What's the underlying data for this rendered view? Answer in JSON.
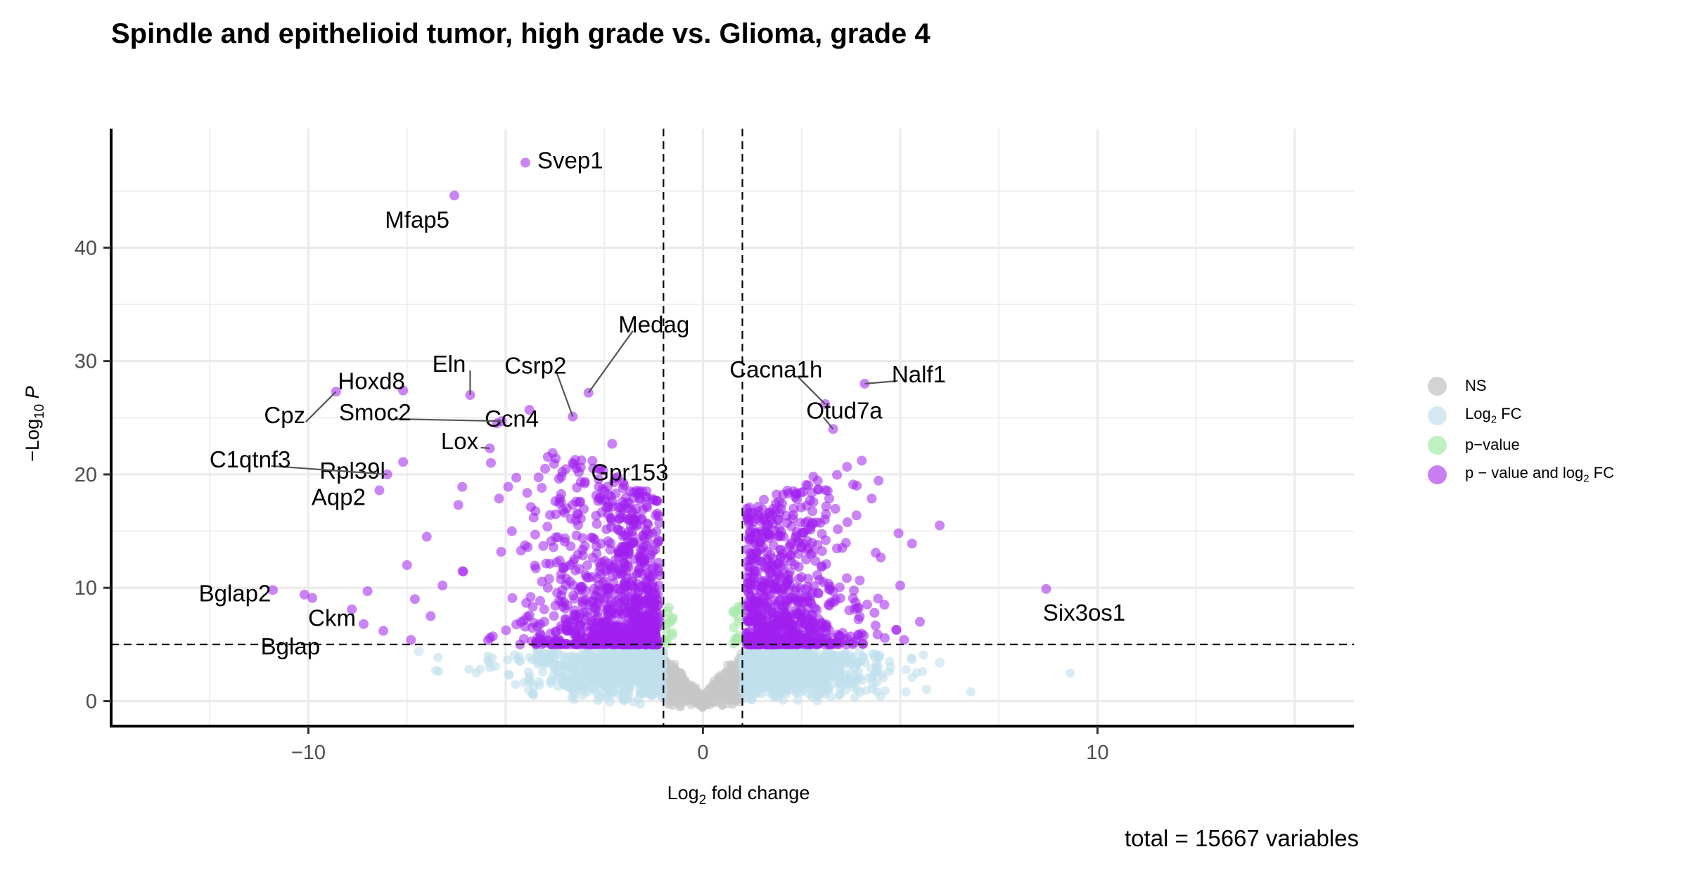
{
  "chart_data": {
    "type": "scatter",
    "title": "Spindle and epithelioid tumor, high grade vs. Glioma, grade 4",
    "xlabel": "Log2 fold change",
    "ylabel": "-Log10 P",
    "caption": "total = 15667 variables",
    "xlim": [
      -15.0,
      16.5
    ],
    "ylim": [
      -2.2,
      50.5
    ],
    "xticks": [
      -10,
      0,
      10
    ],
    "yticks": [
      0,
      10,
      20,
      30,
      40
    ],
    "grid": true,
    "legend_position": "right",
    "fc_cutoff": 1,
    "p_cutoff": 5,
    "total_variables": 15667,
    "legend": [
      {
        "key": "ns",
        "label": "NS",
        "color": "#c6c6c6"
      },
      {
        "key": "fc",
        "label": "Log2 FC",
        "color": "#bfe0ec"
      },
      {
        "key": "p",
        "label": "p-value",
        "color": "#a8e8a8"
      },
      {
        "key": "both",
        "label": "p-value and log2 FC",
        "color": "#a01fef"
      }
    ],
    "labeled_genes": [
      {
        "gene": "Svep1",
        "x": -4.5,
        "y": 47.5
      },
      {
        "gene": "Mfap5",
        "x": -6.3,
        "y": 44.6
      },
      {
        "gene": "Medag",
        "x": -2.9,
        "y": 27.2
      },
      {
        "gene": "Csrp2",
        "x": -3.3,
        "y": 25.1
      },
      {
        "gene": "Gpr153",
        "x": -2.3,
        "y": 22.7
      },
      {
        "gene": "Eln",
        "x": -5.9,
        "y": 27.0
      },
      {
        "gene": "Ccn4",
        "x": -4.4,
        "y": 25.7
      },
      {
        "gene": "Hoxd8",
        "x": -7.6,
        "y": 27.4
      },
      {
        "gene": "Cpz",
        "x": -9.3,
        "y": 27.3
      },
      {
        "gene": "Smoc2",
        "x": -5.1,
        "y": 24.7
      },
      {
        "gene": "Lox",
        "x": -5.4,
        "y": 22.3
      },
      {
        "gene": "Rpl39l",
        "x": -7.6,
        "y": 21.1
      },
      {
        "gene": "C1qtnf3",
        "x": -8.0,
        "y": 20.0
      },
      {
        "gene": "Aqp2",
        "x": -8.2,
        "y": 18.6
      },
      {
        "gene": "Bglap2",
        "x": -10.9,
        "y": 9.8
      },
      {
        "gene": "Ckm",
        "x": -9.9,
        "y": 9.1
      },
      {
        "gene": "Bglap",
        "x": -10.1,
        "y": 9.4
      },
      {
        "gene": "Cacna1h",
        "x": 3.1,
        "y": 26.2
      },
      {
        "gene": "Nalf1",
        "x": 4.1,
        "y": 28.0
      },
      {
        "gene": "Otud7a",
        "x": 3.3,
        "y": 24.0
      },
      {
        "gene": "Six3os1",
        "x": 8.7,
        "y": 9.9
      }
    ],
    "other_points": [
      {
        "x": -7.5,
        "y": 12.0
      },
      {
        "x": -7.0,
        "y": 14.5
      },
      {
        "x": -6.2,
        "y": 17.3
      },
      {
        "x": -6.1,
        "y": 18.9
      },
      {
        "x": -6.6,
        "y": 10.2
      },
      {
        "x": -8.5,
        "y": 9.7
      },
      {
        "x": -8.9,
        "y": 8.1
      },
      {
        "x": -8.6,
        "y": 6.8
      },
      {
        "x": -8.1,
        "y": 6.2
      },
      {
        "x": -7.3,
        "y": 9.0
      },
      {
        "x": -6.9,
        "y": 7.5
      },
      {
        "x": -7.4,
        "y": 5.4
      },
      {
        "x": -4.0,
        "y": 20.5
      },
      {
        "x": -3.3,
        "y": 21.0
      },
      {
        "x": -2.8,
        "y": 21.2
      },
      {
        "x": 5.3,
        "y": 13.9
      },
      {
        "x": 6.0,
        "y": 15.5
      },
      {
        "x": 5.0,
        "y": 10.2
      },
      {
        "x": 5.5,
        "y": 7.0
      },
      {
        "x": 4.9,
        "y": 6.3
      },
      {
        "x": 5.1,
        "y": 5.4
      },
      {
        "x": 4.6,
        "y": 8.5
      },
      {
        "x": 2.8,
        "y": 19.8
      },
      {
        "x": 3.9,
        "y": 19.0
      },
      {
        "x": 6.0,
        "y": 3.4
      },
      {
        "x": -7.2,
        "y": 4.4
      }
    ]
  }
}
